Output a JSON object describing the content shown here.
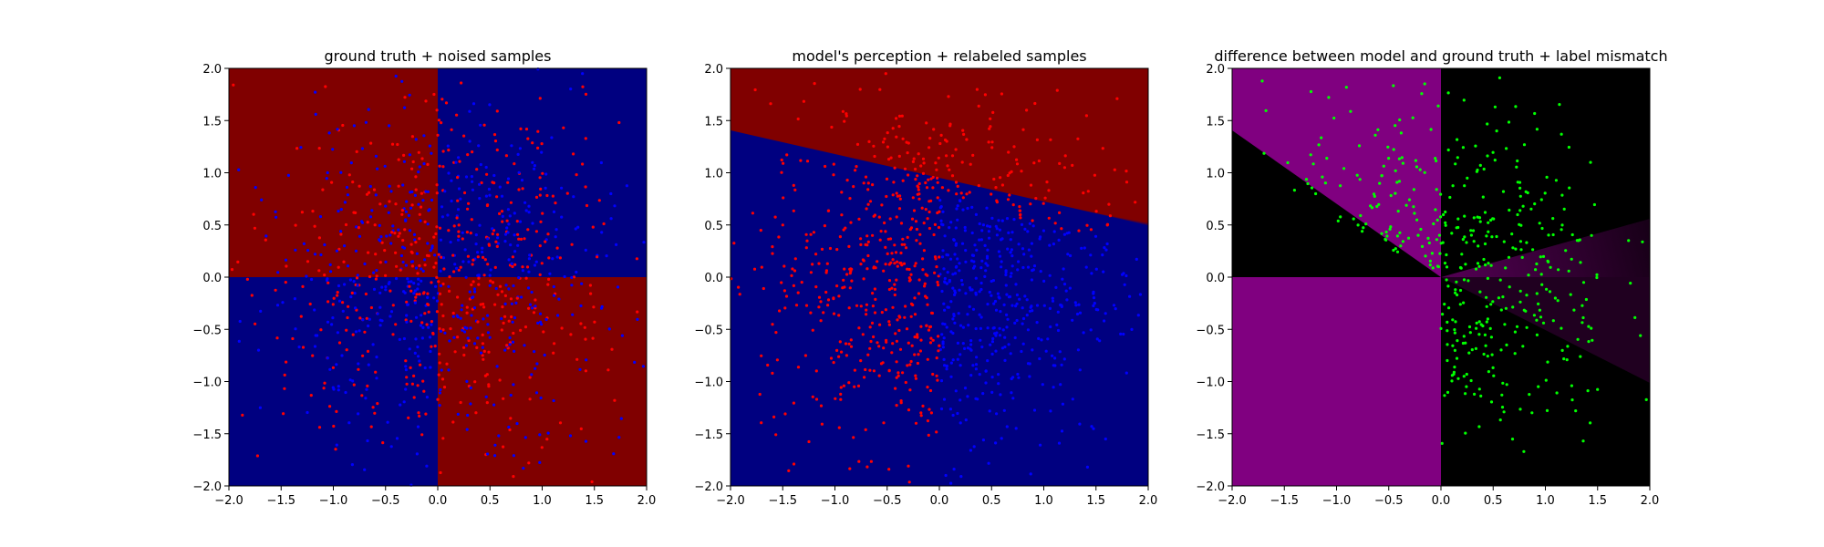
{
  "chart_data": [
    {
      "type": "heatmap",
      "title": "ground truth + noised samples",
      "xlabel": "",
      "ylabel": "",
      "xlim": [
        -2.0,
        2.0
      ],
      "ylim": [
        -2.0,
        2.0
      ],
      "xticks": [
        "−2.0",
        "−1.5",
        "−1.0",
        "−0.5",
        "0.0",
        "0.5",
        "1.0",
        "1.5",
        "2.0"
      ],
      "yticks": [
        "−2.0",
        "−1.5",
        "−1.0",
        "−0.5",
        "0.0",
        "0.5",
        "1.0",
        "1.5",
        "2.0"
      ],
      "grid": false,
      "background": {
        "kind": "quadrant",
        "description_colors": {
          "positive_product": "#000080",
          "negative_product": "#800000"
        }
      },
      "series": [
        {
          "color": "#ff0000",
          "marker": "point"
        },
        {
          "color": "#0000ff",
          "marker": "point"
        }
      ]
    },
    {
      "type": "heatmap",
      "title": "model's perception + relabeled samples",
      "xlabel": "",
      "ylabel": "",
      "xlim": [
        -2.0,
        2.0
      ],
      "ylim": [
        -2.0,
        2.0
      ],
      "xticks": [
        "−2.0",
        "−1.5",
        "−1.0",
        "−0.5",
        "0.0",
        "0.5",
        "1.0",
        "1.5",
        "2.0"
      ],
      "yticks": [
        "−2.0",
        "−1.5",
        "−1.0",
        "−0.5",
        "0.0",
        "0.5",
        "1.0",
        "1.5",
        "2.0"
      ],
      "grid": false,
      "background": {
        "kind": "linear-boundary",
        "boundary": [
          [
            -2.0,
            1.4
          ],
          [
            2.0,
            0.2
          ]
        ],
        "above_color": "#800000",
        "below_color": "#000080"
      },
      "series": [
        {
          "color": "#ff0000",
          "marker": "point"
        },
        {
          "color": "#0000ff",
          "marker": "point"
        }
      ]
    },
    {
      "type": "heatmap",
      "title": "difference between model and ground truth + label mismatch",
      "xlabel": "",
      "ylabel": "",
      "xlim": [
        -2.0,
        2.0
      ],
      "ylim": [
        -2.0,
        2.0
      ],
      "xticks": [
        "−2.0",
        "−1.5",
        "−1.0",
        "−0.5",
        "0.0",
        "0.5",
        "1.0",
        "1.5",
        "2.0"
      ],
      "yticks": [
        "−2.0",
        "−1.5",
        "−1.0",
        "−0.5",
        "0.0",
        "0.5",
        "1.0",
        "1.5",
        "2.0"
      ],
      "grid": false,
      "background": {
        "kind": "difference",
        "mismatch_color": "#800080",
        "match_color": "#000000"
      },
      "series": [
        {
          "color": "#00ff00",
          "marker": "point"
        }
      ]
    }
  ]
}
